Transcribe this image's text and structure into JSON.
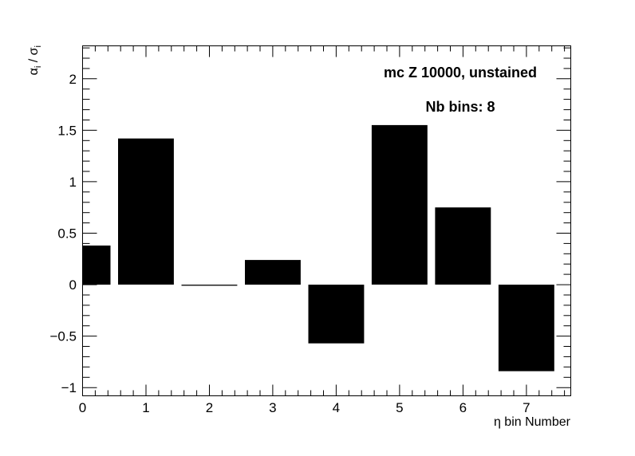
{
  "chart_data": {
    "type": "bar",
    "categories": [
      0,
      1,
      2,
      3,
      4,
      5,
      6,
      7
    ],
    "values": [
      0.38,
      1.42,
      -0.01,
      0.24,
      -0.57,
      1.55,
      0.75,
      -0.84
    ],
    "xlabel": "η bin Number",
    "ylabel": {
      "main": "α",
      "sub": "i",
      "sep": " / ",
      "main2": "σ",
      "sub2": "i"
    },
    "xlim": [
      0,
      7.7
    ],
    "ylim": [
      -1.08,
      2.32
    ],
    "x_ticks": [
      0,
      1,
      2,
      3,
      4,
      5,
      6,
      7
    ],
    "y_ticks": [
      -1,
      -0.5,
      0,
      0.5,
      1,
      1.5,
      2
    ],
    "y_tick_labels": [
      "−1",
      "−0.5",
      "0",
      "0.5",
      "1",
      "1.5",
      "2"
    ],
    "annotations": [
      "mc Z 10000, unstained",
      "Nb bins: 8"
    ],
    "bar_color": "#000000",
    "grid": false
  }
}
